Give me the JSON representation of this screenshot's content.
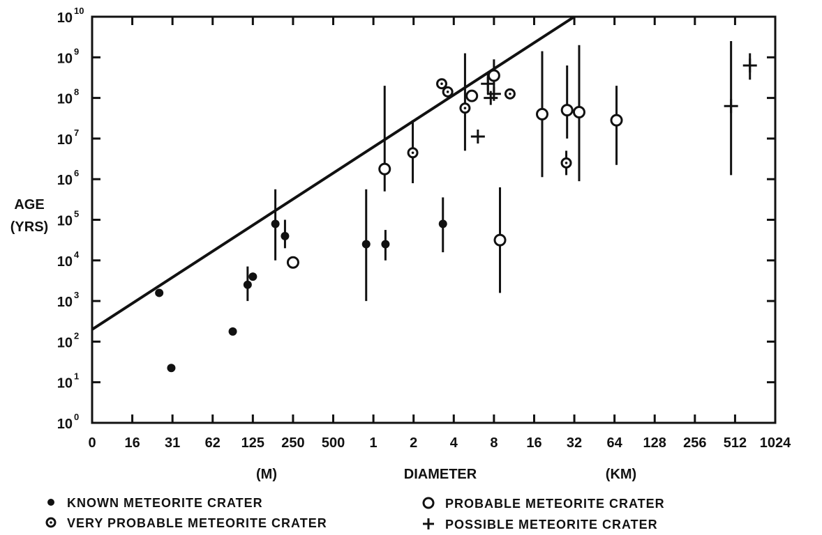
{
  "chart_data": {
    "type": "scatter",
    "title": "",
    "ylabel_line1": "AGE",
    "ylabel_line2": "(YRS)",
    "xlabel": "DIAMETER",
    "xunit_left": "(M)",
    "xunit_right": "(KM)",
    "x_scale": "log2",
    "y_scale": "log10",
    "x_tick_labels": [
      "0",
      "16",
      "31",
      "62",
      "125",
      "250",
      "500",
      "1",
      "2",
      "4",
      "8",
      "16",
      "32",
      "64",
      "128",
      "256",
      "512",
      "1024"
    ],
    "y_tick_exponents": [
      "0",
      "1",
      "2",
      "3",
      "4",
      "5",
      "6",
      "7",
      "8",
      "9",
      "10"
    ],
    "xlim_log2_m": [
      3,
      20
    ],
    "ylim_log10": [
      0,
      10
    ],
    "trend_line": {
      "from": [
        3,
        2.3
      ],
      "to": [
        15,
        10
      ]
    },
    "legend": {
      "known": "KNOWN METEORITE CRATER",
      "very_probable": "VERY PROBABLE METEORITE CRATER",
      "probable": "PROBABLE METEORITE CRATER",
      "possible": "POSSIBLE METEORITE CRATER"
    },
    "series": [
      {
        "name": "KNOWN METEORITE CRATER",
        "marker": "filled-circle",
        "points": [
          {
            "x_log2_m": 4.67,
            "age_log10": 3.2
          },
          {
            "x_log2_m": 4.97,
            "age_log10": 1.35
          },
          {
            "x_log2_m": 6.5,
            "age_log10": 2.25
          },
          {
            "x_log2_m": 6.87,
            "age_log10": 3.4,
            "err": [
              3.0,
              3.85
            ]
          },
          {
            "x_log2_m": 7.0,
            "age_log10": 3.6
          },
          {
            "x_log2_m": 7.56,
            "age_log10": 4.9,
            "err": [
              4.0,
              5.75
            ]
          },
          {
            "x_log2_m": 7.8,
            "age_log10": 4.6,
            "err": [
              4.3,
              5.0
            ]
          },
          {
            "x_log2_m": 9.82,
            "age_log10": 4.4,
            "err": [
              3.0,
              5.75
            ]
          },
          {
            "x_log2_m": 10.3,
            "age_log10": 4.4,
            "err": [
              4.0,
              4.75
            ]
          },
          {
            "x_log2_m": 11.73,
            "age_log10": 4.9,
            "err": [
              4.2,
              5.55
            ]
          }
        ]
      },
      {
        "name": "VERY PROBABLE METEORITE CRATER",
        "marker": "dotted-circle",
        "points": [
          {
            "x_log2_m": 10.98,
            "age_log10": 6.65,
            "err": [
              5.9,
              7.45
            ]
          },
          {
            "x_log2_m": 11.7,
            "age_log10": 8.35
          },
          {
            "x_log2_m": 11.85,
            "age_log10": 8.15
          },
          {
            "x_log2_m": 12.28,
            "age_log10": 7.75,
            "err": [
              6.7,
              9.1
            ]
          },
          {
            "x_log2_m": 13.4,
            "age_log10": 8.1
          },
          {
            "x_log2_m": 14.8,
            "age_log10": 6.4,
            "err": [
              6.1,
              6.7
            ]
          }
        ]
      },
      {
        "name": "PROBABLE METEORITE CRATER",
        "marker": "open-circle",
        "points": [
          {
            "x_log2_m": 8.0,
            "age_log10": 3.95
          },
          {
            "x_log2_m": 10.28,
            "age_log10": 6.25,
            "err": [
              5.7,
              8.3
            ]
          },
          {
            "x_log2_m": 12.45,
            "age_log10": 8.05
          },
          {
            "x_log2_m": 13.0,
            "age_log10": 8.55,
            "err": [
              8.15,
              8.95
            ]
          },
          {
            "x_log2_m": 13.15,
            "age_log10": 4.5,
            "err": [
              3.2,
              5.8
            ]
          },
          {
            "x_log2_m": 14.2,
            "age_log10": 7.6,
            "err": [
              6.05,
              9.15
            ]
          },
          {
            "x_log2_m": 14.82,
            "age_log10": 7.7,
            "err": [
              7.0,
              8.8
            ]
          },
          {
            "x_log2_m": 15.12,
            "age_log10": 7.65,
            "err": [
              5.95,
              9.3
            ]
          },
          {
            "x_log2_m": 16.05,
            "age_log10": 7.45,
            "err": [
              6.35,
              8.3
            ]
          }
        ]
      },
      {
        "name": "POSSIBLE METEORITE CRATER",
        "marker": "plus",
        "points": [
          {
            "x_log2_m": 12.6,
            "age_log10": 7.05
          },
          {
            "x_log2_m": 12.85,
            "age_log10": 8.35,
            "err": [
              8.1,
              8.6
            ]
          },
          {
            "x_log2_m": 12.92,
            "age_log10": 8.0
          },
          {
            "x_log2_m": 13.0,
            "age_log10": 8.1
          },
          {
            "x_log2_m": 18.9,
            "age_log10": 7.8,
            "err": [
              6.1,
              9.4
            ]
          },
          {
            "x_log2_m": 19.37,
            "age_log10": 8.8,
            "err": [
              8.45,
              9.1
            ]
          }
        ]
      }
    ]
  }
}
